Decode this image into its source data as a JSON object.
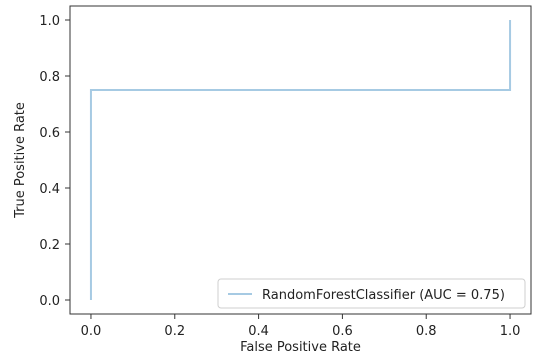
{
  "chart_data": {
    "type": "line",
    "title": "",
    "xlabel": "False Positive Rate",
    "ylabel": "True Positive Rate",
    "xlim": [
      -0.05,
      1.05
    ],
    "ylim": [
      -0.05,
      1.05
    ],
    "xticks": [
      0.0,
      0.2,
      0.4,
      0.6,
      0.8,
      1.0
    ],
    "yticks": [
      0.0,
      0.2,
      0.4,
      0.6,
      0.8,
      1.0
    ],
    "xtick_labels": [
      "0.0",
      "0.2",
      "0.4",
      "0.6",
      "0.8",
      "1.0"
    ],
    "ytick_labels": [
      "0.0",
      "0.2",
      "0.4",
      "0.6",
      "0.8",
      "1.0"
    ],
    "grid": false,
    "legend_position": "lower-right",
    "series": [
      {
        "name": "RandomForestClassifier (AUC = 0.75)",
        "color": "#a6cae3",
        "x": [
          0.0,
          0.0,
          1.0,
          1.0
        ],
        "y": [
          0.0,
          0.75,
          0.75,
          1.0
        ]
      }
    ]
  }
}
